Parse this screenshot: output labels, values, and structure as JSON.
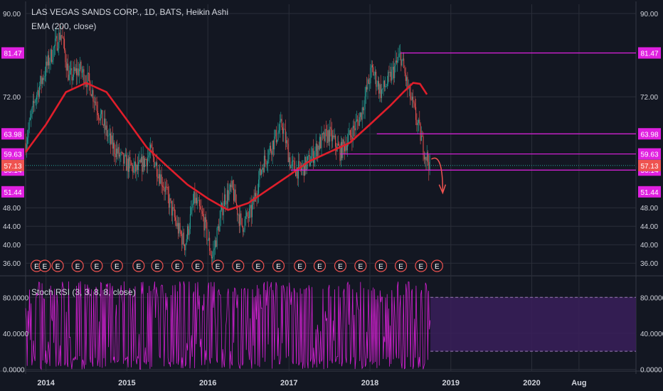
{
  "header": {
    "title": "LAS VEGAS SANDS CORP., 1D, BATS, Heikin Ashi",
    "ema_label": "EMA (200, close)",
    "stoch_label": "Stoch RSI (3, 3, 8, 8, close)"
  },
  "colors": {
    "background": "#131722",
    "grid": "#2a2e39",
    "up": "#26a69a",
    "down": "#ef5350",
    "ema": "#e01e2b",
    "hline": "#e020e0",
    "stoch": "#d020d0",
    "stoch_band": "#3a1f5a",
    "last_price": "#26a69a"
  },
  "chart_data": [
    {
      "type": "candlestick",
      "title": "LAS VEGAS SANDS CORP., 1D, BATS, Heikin Ashi",
      "x_ticks": [
        "2014",
        "2015",
        "2016",
        "2017",
        "2018",
        "2019",
        "2020",
        "Aug"
      ],
      "y_ticks": [
        36.0,
        40.0,
        44.0,
        48.0,
        72.0,
        90.0
      ],
      "y_tick_labels": [
        "36.00",
        "40.00",
        "44.00",
        "48.00",
        "72.00",
        "90.00"
      ],
      "ylim": [
        34.5,
        92.0
      ],
      "grid": true,
      "price_path": [
        [
          "2013-10-01",
          62
        ],
        [
          "2013-11-15",
          72
        ],
        [
          "2014-01-15",
          80
        ],
        [
          "2014-03-10",
          86
        ],
        [
          "2014-04-15",
          76
        ],
        [
          "2014-06-01",
          78
        ],
        [
          "2014-07-15",
          75
        ],
        [
          "2014-09-01",
          68
        ],
        [
          "2014-10-20",
          62
        ],
        [
          "2014-12-15",
          58
        ],
        [
          "2015-02-15",
          56
        ],
        [
          "2015-04-20",
          60
        ],
        [
          "2015-06-15",
          53
        ],
        [
          "2015-08-15",
          44
        ],
        [
          "2015-09-20",
          40
        ],
        [
          "2015-11-01",
          50
        ],
        [
          "2015-12-15",
          45
        ],
        [
          "2016-01-20",
          37
        ],
        [
          "2016-03-15",
          50
        ],
        [
          "2016-04-20",
          52
        ],
        [
          "2016-06-01",
          44
        ],
        [
          "2016-07-15",
          47
        ],
        [
          "2016-09-01",
          57
        ],
        [
          "2016-10-20",
          62
        ],
        [
          "2016-12-01",
          66
        ],
        [
          "2017-01-10",
          57
        ],
        [
          "2017-02-20",
          56
        ],
        [
          "2017-04-01",
          58
        ],
        [
          "2017-05-20",
          62
        ],
        [
          "2017-07-01",
          64
        ],
        [
          "2017-08-20",
          60
        ],
        [
          "2017-10-10",
          64
        ],
        [
          "2017-11-20",
          68
        ],
        [
          "2018-01-10",
          78
        ],
        [
          "2018-02-20",
          73
        ],
        [
          "2018-04-01",
          76
        ],
        [
          "2018-05-20",
          81
        ],
        [
          "2018-06-20",
          74
        ],
        [
          "2018-07-25",
          68
        ],
        [
          "2018-09-05",
          60
        ],
        [
          "2018-10-01",
          57
        ]
      ],
      "ema_200": [
        [
          "2013-10-01",
          60
        ],
        [
          "2014-01-01",
          66
        ],
        [
          "2014-04-01",
          73
        ],
        [
          "2014-07-01",
          75
        ],
        [
          "2014-10-01",
          73
        ],
        [
          "2015-01-01",
          67
        ],
        [
          "2015-04-01",
          61
        ],
        [
          "2015-07-01",
          57
        ],
        [
          "2015-10-01",
          53
        ],
        [
          "2016-01-01",
          50
        ],
        [
          "2016-04-01",
          47.5
        ],
        [
          "2016-07-01",
          49
        ],
        [
          "2016-10-01",
          52
        ],
        [
          "2017-01-01",
          55
        ],
        [
          "2017-04-01",
          58
        ],
        [
          "2017-07-01",
          60
        ],
        [
          "2017-10-01",
          62
        ],
        [
          "2018-01-01",
          66
        ],
        [
          "2018-04-01",
          70
        ],
        [
          "2018-06-01",
          73
        ],
        [
          "2018-07-15",
          75
        ],
        [
          "2018-08-15",
          74.8
        ],
        [
          "2018-09-15",
          72.5
        ]
      ],
      "horizontal_levels": [
        {
          "value": 81.47,
          "label": "81.47",
          "from": "2018-05-20"
        },
        {
          "value": 63.98,
          "label": "63.98",
          "from": "2018-02-01"
        },
        {
          "value": 59.63,
          "label": "59.63",
          "from": "2017-08-20"
        },
        {
          "value": 56.14,
          "label": "56.14",
          "from": "2017-01-10"
        }
      ],
      "price_labels": [
        {
          "value": 57.14,
          "label": "57.14",
          "kind": "last"
        },
        {
          "value": 57.13,
          "label": "57.13",
          "kind": "sell"
        },
        {
          "value": 51.44,
          "label": "51.44",
          "kind": "level"
        }
      ],
      "earnings_markers": {
        "label": "E",
        "dates": [
          "2013-10-25",
          "2013-12-01",
          "2014-01-28",
          "2014-04-28",
          "2014-07-23",
          "2014-10-22",
          "2015-01-28",
          "2015-04-22",
          "2015-07-22",
          "2015-10-21",
          "2016-01-20",
          "2016-04-21",
          "2016-07-20",
          "2016-10-20",
          "2017-01-25",
          "2017-04-24",
          "2017-07-26",
          "2017-10-25",
          "2018-01-25",
          "2018-04-25",
          "2018-07-25",
          "2018-10-05"
        ]
      }
    },
    {
      "type": "line",
      "title": "Stoch RSI (3, 3, 8, 8, close)",
      "y_ticks": [
        0,
        40,
        80
      ],
      "y_tick_labels": [
        "0.0000",
        "40.0000",
        "80.0000"
      ],
      "ylim": [
        -2,
        100
      ],
      "band": [
        20,
        80
      ],
      "x_range": [
        "2013-10-01",
        "2018-10-01"
      ]
    }
  ]
}
